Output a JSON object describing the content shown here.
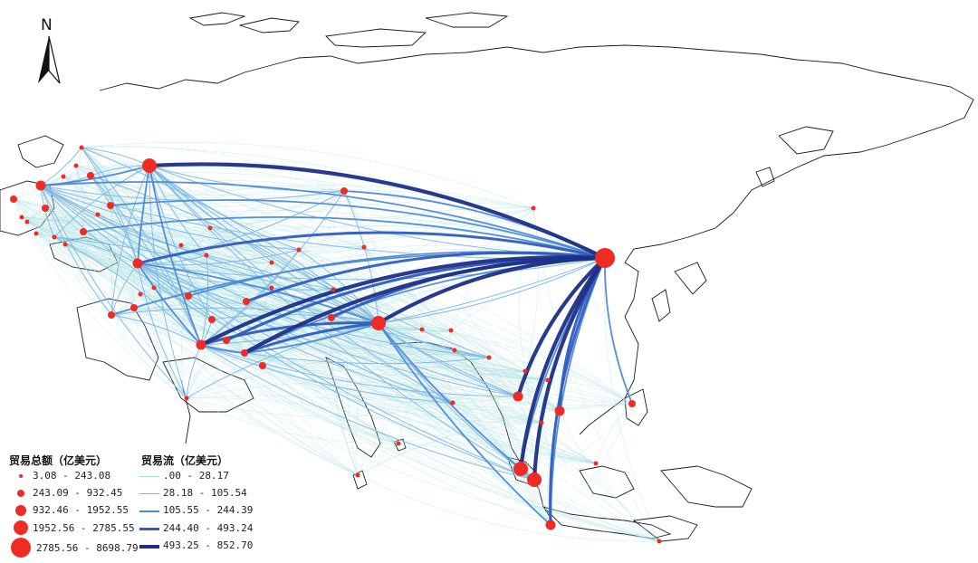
{
  "north_label": "N",
  "legend_trade_total": {
    "title": "贸易总额（亿美元）",
    "items": [
      "3.08 - 243.08",
      "243.09 - 932.45",
      "932.46 - 1952.55",
      "1952.56 - 2785.55",
      "2785.56 - 8698.79"
    ]
  },
  "legend_trade_flow": {
    "title": "贸易流（亿美元）",
    "items": [
      ".00 - 28.17",
      "28.18 - 105.54",
      "105.55 - 244.39",
      "244.40 - 493.24",
      "493.25 - 852.70"
    ]
  },
  "colors": {
    "node": "#ef2b25",
    "flow_class_1": "#a6dfe0",
    "flow_class_2": "#7fb7e6",
    "flow_class_3": "#4d88d6",
    "flow_class_4": "#2f5cc0",
    "flow_class_5": "#1d2f86",
    "coastline": "#1a1a1a"
  }
}
